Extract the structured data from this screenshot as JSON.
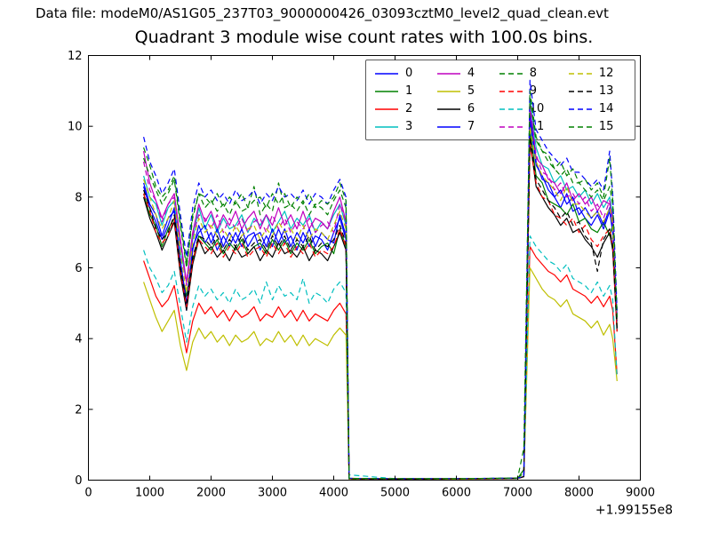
{
  "header": {
    "data_file_label": "Data file: modeM0/AS1G05_237T03_9000000426_03093cztM0_level2_quad_clean.evt",
    "title": "Quadrant 3 module wise count rates with 100.0s bins."
  },
  "chart_data": {
    "type": "line",
    "title": "Quadrant 3 module wise count rates with 100.0s bins.",
    "xlabel": "",
    "ylabel": "",
    "xlim": [
      0,
      9000
    ],
    "ylim": [
      0,
      12
    ],
    "xticks": [
      0,
      1000,
      2000,
      3000,
      4000,
      5000,
      6000,
      7000,
      8000,
      9000
    ],
    "xtick_labels": [
      "0",
      "1000",
      "2000",
      "3000",
      "4000",
      "5000",
      "6000",
      "7000",
      "8000",
      "9000"
    ],
    "yticks": [
      0,
      2,
      4,
      6,
      8,
      10,
      12
    ],
    "ytick_labels": [
      "0",
      "2",
      "4",
      "6",
      "8",
      "10",
      "12"
    ],
    "x_offset_text": "+1.99155e8",
    "grid": false,
    "legend": {
      "columns": 4,
      "rows": 4,
      "position": "upper center",
      "fill_order": "column-major"
    },
    "axis_color": "#000000",
    "background": "#ffffff",
    "x": [
      900,
      1000,
      1100,
      1200,
      1300,
      1400,
      1500,
      1600,
      1700,
      1800,
      1900,
      2000,
      2100,
      2200,
      2300,
      2400,
      2500,
      2600,
      2700,
      2800,
      2900,
      3000,
      3100,
      3200,
      3300,
      3400,
      3500,
      3600,
      3700,
      3800,
      3900,
      4000,
      4100,
      4200,
      4250,
      5000,
      6000,
      7000,
      7100,
      7200,
      7300,
      7400,
      7500,
      7600,
      7700,
      7800,
      7900,
      8000,
      8100,
      8200,
      8300,
      8400,
      8500,
      8550,
      8620
    ],
    "series": [
      {
        "name": "0",
        "color": "#0000ff",
        "dash": false,
        "values": [
          8.3,
          7.7,
          7.3,
          6.8,
          7.2,
          7.7,
          6.1,
          4.8,
          6.5,
          7.2,
          6.7,
          7.0,
          6.5,
          6.9,
          6.6,
          7.0,
          6.6,
          6.9,
          7.0,
          6.5,
          6.9,
          6.6,
          7.1,
          6.7,
          6.9,
          6.5,
          7.0,
          6.6,
          6.9,
          6.8,
          6.5,
          7.0,
          7.4,
          6.8,
          0.05,
          0.04,
          0.04,
          0.05,
          0.1,
          10.2,
          8.9,
          8.6,
          8.2,
          8.0,
          7.7,
          8.1,
          7.6,
          7.7,
          7.4,
          7.2,
          7.5,
          7.1,
          7.6,
          7.0,
          4.5
        ]
      },
      {
        "name": "1",
        "color": "#008000",
        "dash": false,
        "values": [
          8.1,
          7.5,
          7.2,
          6.6,
          7.1,
          7.4,
          6.0,
          5.2,
          6.2,
          6.9,
          6.7,
          6.5,
          6.8,
          6.4,
          6.7,
          6.5,
          6.8,
          6.4,
          6.6,
          6.7,
          6.4,
          6.8,
          6.5,
          6.8,
          6.4,
          6.7,
          6.5,
          6.8,
          6.4,
          6.6,
          6.7,
          6.4,
          7.1,
          6.6,
          0.04,
          0.03,
          0.04,
          0.05,
          0.3,
          9.9,
          8.6,
          8.4,
          7.9,
          7.8,
          7.7,
          7.5,
          7.8,
          7.3,
          7.4,
          7.1,
          7.0,
          7.3,
          6.9,
          7.2,
          4.3
        ]
      },
      {
        "name": "2",
        "color": "#ff0000",
        "dash": false,
        "values": [
          6.2,
          5.7,
          5.2,
          4.9,
          5.1,
          5.5,
          4.5,
          3.6,
          4.5,
          5.0,
          4.7,
          4.9,
          4.6,
          4.8,
          4.5,
          4.8,
          4.6,
          4.7,
          4.9,
          4.5,
          4.7,
          4.6,
          4.9,
          4.6,
          4.8,
          4.5,
          4.8,
          4.5,
          4.7,
          4.6,
          4.5,
          4.8,
          5.0,
          4.7,
          0.04,
          0.03,
          0.03,
          0.04,
          0.1,
          6.6,
          6.3,
          6.1,
          5.9,
          5.8,
          5.6,
          5.8,
          5.4,
          5.3,
          5.2,
          5.0,
          5.2,
          4.9,
          5.2,
          4.8,
          3.0
        ]
      },
      {
        "name": "3",
        "color": "#00bfbf",
        "dash": false,
        "values": [
          8.6,
          8.0,
          7.8,
          7.2,
          7.7,
          7.9,
          6.5,
          5.6,
          6.8,
          7.7,
          7.1,
          7.5,
          7.0,
          7.4,
          7.1,
          7.2,
          7.5,
          7.0,
          7.4,
          7.2,
          7.5,
          7.0,
          7.3,
          7.6,
          7.1,
          7.4,
          7.2,
          7.5,
          7.0,
          7.3,
          7.1,
          7.5,
          7.8,
          7.2,
          0.05,
          0.04,
          0.04,
          0.05,
          0.1,
          10.8,
          9.4,
          8.9,
          8.8,
          8.4,
          8.6,
          8.2,
          8.3,
          8.0,
          8.2,
          7.8,
          8.1,
          7.7,
          8.0,
          7.5,
          4.6
        ]
      },
      {
        "name": "4",
        "color": "#bf00bf",
        "dash": false,
        "values": [
          9.3,
          8.4,
          7.9,
          7.4,
          7.8,
          8.1,
          6.8,
          5.6,
          7.0,
          7.8,
          7.3,
          7.6,
          7.1,
          7.5,
          7.2,
          7.6,
          7.1,
          7.4,
          7.6,
          7.1,
          7.5,
          7.2,
          7.7,
          7.2,
          7.5,
          7.1,
          7.6,
          7.1,
          7.4,
          7.3,
          7.1,
          7.6,
          8.0,
          7.3,
          0.05,
          0.04,
          0.04,
          0.05,
          0.1,
          10.5,
          9.1,
          8.9,
          8.5,
          8.4,
          8.1,
          8.4,
          7.9,
          8.1,
          7.8,
          8.0,
          7.6,
          7.9,
          7.8,
          7.4,
          4.6
        ]
      },
      {
        "name": "5",
        "color": "#bfbf00",
        "dash": false,
        "values": [
          5.6,
          5.1,
          4.6,
          4.2,
          4.5,
          4.8,
          3.8,
          3.1,
          3.9,
          4.3,
          4.0,
          4.2,
          3.9,
          4.1,
          3.8,
          4.1,
          3.9,
          4.0,
          4.2,
          3.8,
          4.0,
          3.9,
          4.2,
          3.9,
          4.1,
          3.8,
          4.1,
          3.8,
          4.0,
          3.9,
          3.8,
          4.1,
          4.3,
          4.1,
          0.03,
          0.03,
          0.03,
          0.04,
          0.1,
          6.0,
          5.7,
          5.4,
          5.2,
          5.1,
          4.9,
          5.1,
          4.7,
          4.6,
          4.5,
          4.3,
          4.5,
          4.1,
          4.4,
          4.0,
          2.8
        ]
      },
      {
        "name": "6",
        "color": "#000000",
        "dash": false,
        "values": [
          8.0,
          7.4,
          7.0,
          6.5,
          6.9,
          7.3,
          5.8,
          4.8,
          6.1,
          6.8,
          6.4,
          6.6,
          6.3,
          6.5,
          6.2,
          6.6,
          6.3,
          6.4,
          6.6,
          6.2,
          6.5,
          6.3,
          6.7,
          6.4,
          6.5,
          6.3,
          6.6,
          6.2,
          6.5,
          6.4,
          6.2,
          6.6,
          7.0,
          6.5,
          0.04,
          0.03,
          0.04,
          0.05,
          0.1,
          9.6,
          8.3,
          8.0,
          7.7,
          7.5,
          7.2,
          7.4,
          7.0,
          7.1,
          6.8,
          6.6,
          6.3,
          6.7,
          7.0,
          6.5,
          4.2
        ]
      },
      {
        "name": "7",
        "color": "#0000ff",
        "dash": false,
        "values": [
          8.4,
          7.8,
          7.5,
          6.9,
          7.4,
          7.6,
          6.2,
          5.0,
          6.6,
          7.0,
          7.2,
          6.7,
          7.1,
          6.6,
          7.0,
          6.7,
          7.1,
          6.6,
          6.9,
          7.0,
          6.6,
          7.1,
          6.7,
          7.1,
          6.6,
          7.0,
          6.7,
          7.1,
          6.6,
          7.0,
          6.8,
          6.7,
          7.5,
          6.9,
          0.05,
          0.04,
          0.04,
          0.05,
          0.1,
          10.3,
          9.0,
          8.5,
          8.4,
          8.0,
          8.2,
          7.8,
          8.0,
          7.5,
          7.7,
          7.4,
          7.6,
          7.2,
          7.7,
          7.1,
          4.5
        ]
      },
      {
        "name": "8",
        "color": "#008000",
        "dash": true,
        "values": [
          9.1,
          8.6,
          8.2,
          7.8,
          8.1,
          8.5,
          7.2,
          6.0,
          7.4,
          8.1,
          7.7,
          7.9,
          7.6,
          7.8,
          7.5,
          7.9,
          7.6,
          7.7,
          8.3,
          7.5,
          7.8,
          7.6,
          8.4,
          7.7,
          7.8,
          7.6,
          7.9,
          7.5,
          7.8,
          7.7,
          7.5,
          7.9,
          8.2,
          7.7,
          0.05,
          0.04,
          0.04,
          0.06,
          0.2,
          10.8,
          9.6,
          9.3,
          9.0,
          8.8,
          8.6,
          8.8,
          8.4,
          8.4,
          8.2,
          8.0,
          8.2,
          7.9,
          8.3,
          7.8,
          4.7
        ]
      },
      {
        "name": "9",
        "color": "#ff0000",
        "dash": true,
        "values": [
          8.1,
          7.6,
          7.0,
          6.7,
          6.9,
          7.4,
          5.9,
          4.9,
          6.2,
          6.8,
          6.6,
          6.4,
          6.7,
          6.3,
          6.6,
          6.4,
          6.7,
          6.3,
          6.5,
          6.6,
          6.3,
          6.7,
          6.4,
          6.7,
          6.3,
          6.6,
          6.4,
          6.7,
          6.3,
          6.5,
          6.4,
          6.6,
          7.1,
          6.6,
          0.04,
          0.03,
          0.04,
          0.05,
          0.1,
          9.5,
          8.4,
          8.0,
          7.9,
          7.5,
          7.4,
          7.2,
          7.4,
          7.0,
          7.2,
          6.8,
          6.6,
          6.9,
          7.1,
          6.6,
          4.2
        ]
      },
      {
        "name": "10",
        "color": "#00bfbf",
        "dash": true,
        "values": [
          6.5,
          6.0,
          5.7,
          5.3,
          5.5,
          5.9,
          4.9,
          3.9,
          4.9,
          5.5,
          5.2,
          5.4,
          5.1,
          5.3,
          5.0,
          5.4,
          5.1,
          5.2,
          5.4,
          5.0,
          5.6,
          5.1,
          5.5,
          5.2,
          5.3,
          5.1,
          5.7,
          5.0,
          5.3,
          5.2,
          5.0,
          5.4,
          5.6,
          5.3,
          0.15,
          0.04,
          0.04,
          0.05,
          0.1,
          6.9,
          6.6,
          6.4,
          6.2,
          6.1,
          5.9,
          6.1,
          5.7,
          5.6,
          5.5,
          5.3,
          5.6,
          5.2,
          5.5,
          5.1,
          2.9
        ]
      },
      {
        "name": "11",
        "color": "#bf00bf",
        "dash": true,
        "values": [
          9.0,
          8.2,
          7.9,
          7.3,
          7.8,
          8.0,
          6.7,
          5.5,
          6.9,
          7.5,
          7.4,
          7.1,
          7.5,
          7.0,
          7.4,
          7.1,
          7.4,
          7.0,
          7.3,
          7.4,
          7.0,
          7.5,
          7.1,
          7.4,
          7.0,
          7.3,
          7.1,
          7.4,
          7.0,
          7.2,
          7.3,
          7.0,
          7.8,
          7.3,
          0.05,
          0.04,
          0.04,
          0.05,
          0.1,
          10.6,
          9.2,
          8.7,
          8.6,
          8.2,
          8.4,
          8.0,
          8.1,
          7.8,
          8.0,
          7.6,
          7.8,
          7.4,
          7.9,
          7.3,
          4.5
        ]
      },
      {
        "name": "12",
        "color": "#bfbf00",
        "dash": true,
        "values": [
          8.5,
          8.0,
          7.5,
          7.1,
          7.4,
          7.9,
          6.4,
          5.3,
          6.7,
          7.4,
          7.0,
          7.2,
          6.9,
          7.1,
          6.8,
          7.2,
          6.9,
          7.1,
          7.2,
          6.8,
          7.1,
          6.9,
          7.3,
          7.0,
          7.1,
          6.8,
          7.2,
          6.8,
          7.1,
          7.0,
          6.8,
          7.2,
          7.6,
          7.1,
          0.05,
          0.04,
          0.04,
          0.05,
          0.1,
          10.0,
          9.0,
          8.6,
          8.4,
          8.2,
          7.9,
          8.3,
          7.8,
          7.8,
          7.6,
          7.4,
          7.6,
          7.3,
          7.7,
          7.2,
          4.4
        ]
      },
      {
        "name": "13",
        "color": "#000000",
        "dash": true,
        "values": [
          8.2,
          7.7,
          7.1,
          6.8,
          7.0,
          7.5,
          6.0,
          5.0,
          6.3,
          6.9,
          6.8,
          6.6,
          6.9,
          6.5,
          6.8,
          6.6,
          6.9,
          6.5,
          6.7,
          6.8,
          6.5,
          6.9,
          6.6,
          6.9,
          6.5,
          6.8,
          6.6,
          6.9,
          6.5,
          6.7,
          6.6,
          6.8,
          7.2,
          6.7,
          0.04,
          0.03,
          0.04,
          0.05,
          0.1,
          9.7,
          8.5,
          8.2,
          7.9,
          7.7,
          7.4,
          7.6,
          7.2,
          7.3,
          6.9,
          6.7,
          5.9,
          6.8,
          7.1,
          6.6,
          4.3
        ]
      },
      {
        "name": "14",
        "color": "#0000ff",
        "dash": true,
        "values": [
          9.7,
          9.0,
          8.6,
          8.1,
          8.4,
          8.8,
          7.5,
          6.3,
          7.7,
          8.4,
          8.0,
          8.2,
          7.9,
          8.1,
          7.8,
          8.2,
          7.9,
          8.0,
          8.2,
          7.8,
          8.1,
          7.9,
          8.3,
          8.0,
          8.1,
          7.9,
          8.2,
          7.8,
          8.1,
          8.0,
          7.8,
          8.2,
          8.5,
          8.0,
          0.05,
          0.04,
          0.04,
          0.06,
          0.1,
          11.3,
          9.9,
          9.6,
          9.3,
          9.1,
          8.9,
          9.1,
          8.7,
          8.7,
          8.5,
          8.3,
          8.5,
          8.2,
          9.3,
          8.1,
          4.8
        ]
      },
      {
        "name": "15",
        "color": "#008000",
        "dash": true,
        "values": [
          9.4,
          8.9,
          8.3,
          8.0,
          8.2,
          8.6,
          7.3,
          6.1,
          7.5,
          8.1,
          8.0,
          7.8,
          8.1,
          7.7,
          8.0,
          7.8,
          8.1,
          7.7,
          7.9,
          8.0,
          7.7,
          8.1,
          7.8,
          8.1,
          7.7,
          8.0,
          7.8,
          8.1,
          7.7,
          7.9,
          7.8,
          8.0,
          8.4,
          7.9,
          0.05,
          0.04,
          0.04,
          0.06,
          0.9,
          11.0,
          9.7,
          9.3,
          9.2,
          8.8,
          9.0,
          8.6,
          8.8,
          8.4,
          8.5,
          8.2,
          8.4,
          8.0,
          9.1,
          7.9,
          4.6
        ]
      }
    ]
  }
}
